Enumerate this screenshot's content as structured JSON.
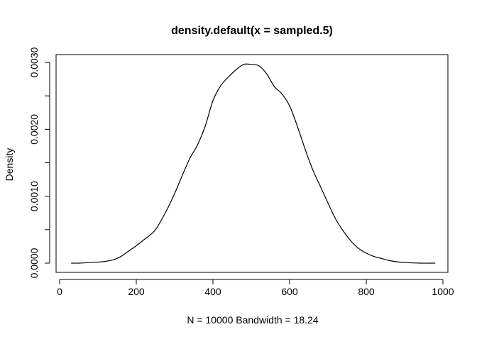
{
  "chart_data": {
    "type": "line",
    "title": "density.default(x = sampled.5)",
    "xlabel": "N = 10000   Bandwidth = 18.24",
    "ylabel": "Density",
    "xlim": [
      0,
      1000
    ],
    "ylim": [
      0,
      0.003
    ],
    "x_ticks": [
      0,
      200,
      400,
      600,
      800,
      1000
    ],
    "x_tick_labels": [
      "0",
      "200",
      "400",
      "600",
      "800",
      "1000"
    ],
    "y_ticks": [
      0,
      0.001,
      0.002,
      0.003
    ],
    "y_tick_labels": [
      "0.0000",
      "0.0010",
      "0.0020",
      "0.0030"
    ],
    "grid": false,
    "series": [
      {
        "x": [
          30,
          50,
          80,
          110,
          140,
          160,
          180,
          200,
          220,
          250,
          280,
          300,
          320,
          340,
          360,
          380,
          400,
          420,
          440,
          460,
          480,
          500,
          520,
          540,
          560,
          580,
          600,
          620,
          640,
          660,
          680,
          700,
          720,
          740,
          760,
          780,
          800,
          820,
          840,
          860,
          880,
          900,
          940,
          980
        ],
        "y": [
          0.0,
          0.0,
          1e-05,
          2e-05,
          5e-05,
          0.0001,
          0.00018,
          0.00026,
          0.00035,
          0.0005,
          0.0008,
          0.00104,
          0.00131,
          0.00157,
          0.00177,
          0.00205,
          0.00243,
          0.00265,
          0.00278,
          0.00289,
          0.00297,
          0.00297,
          0.00295,
          0.00283,
          0.00264,
          0.00253,
          0.00235,
          0.00205,
          0.00171,
          0.0014,
          0.00115,
          0.0009,
          0.00066,
          0.00048,
          0.00033,
          0.00022,
          0.00015,
          0.0001,
          7e-05,
          4e-05,
          2e-05,
          1e-05,
          0.0,
          0.0
        ],
        "color": "#000000"
      }
    ]
  }
}
